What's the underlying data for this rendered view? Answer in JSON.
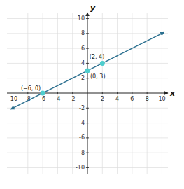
{
  "chart_data": {
    "type": "scatter",
    "xlabel": "x",
    "ylabel": "y",
    "xlim": [
      -10.8,
      10.8
    ],
    "ylim": [
      -10.8,
      10.8
    ],
    "xticks": [
      -10,
      -8,
      -6,
      -4,
      -2,
      2,
      4,
      6,
      8,
      10
    ],
    "yticks": [
      -10,
      -8,
      -6,
      -4,
      -2,
      2,
      4,
      6,
      8,
      10
    ],
    "grid": true,
    "series": [
      {
        "type": "line",
        "color": "#2a6f8f",
        "x": [
          -10.3,
          10.3
        ],
        "values": [
          -2.15,
          8.15
        ]
      },
      {
        "type": "scatter",
        "color": "#4ecece",
        "x": [
          -6,
          0,
          2
        ],
        "values": [
          0,
          3,
          4
        ],
        "value_labels": [
          "(−6, 0)",
          "(0, 3)",
          "(2, 4)"
        ]
      }
    ]
  }
}
